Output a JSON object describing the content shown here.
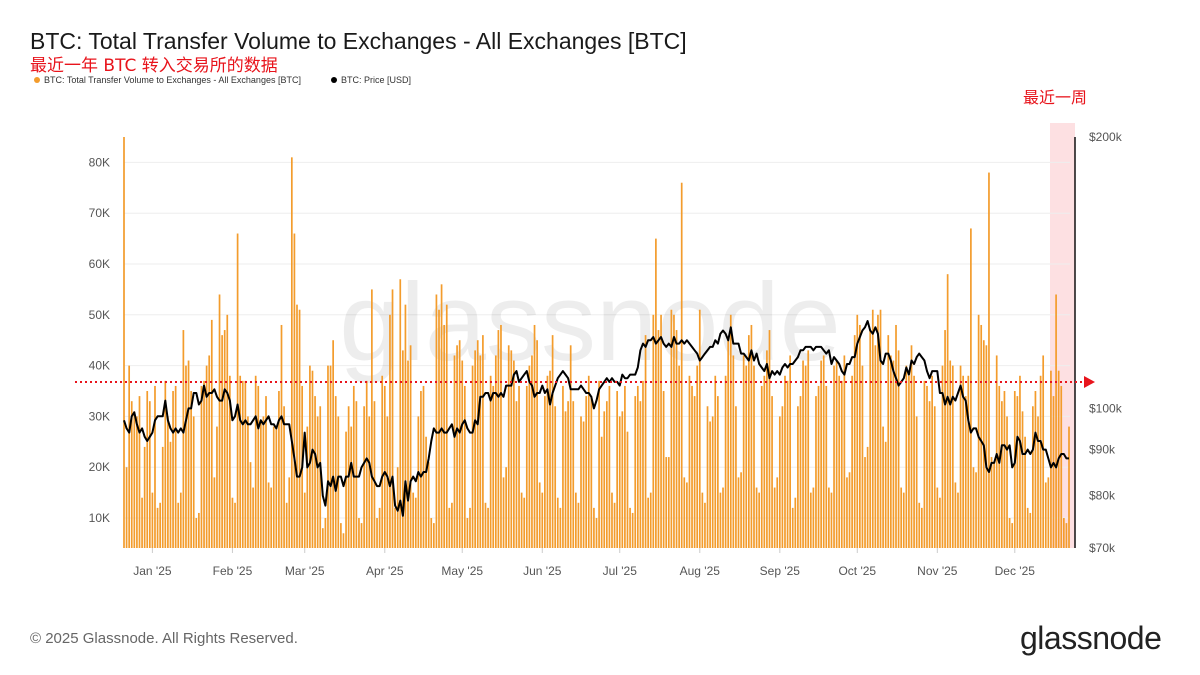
{
  "header": {
    "title": "BTC: Total Transfer Volume to Exchanges - All Exchanges [BTC]",
    "subtitle": "最近一年 BTC 转入交易所的数据",
    "annotation_last_week": "最近一周"
  },
  "legend": [
    {
      "label": "BTC: Total Transfer Volume to Exchanges - All Exchanges [BTC]",
      "color": "#f39c2c"
    },
    {
      "label": "BTC: Price [USD]",
      "color": "#000000"
    }
  ],
  "footer": {
    "copyright": "© 2025 Glassnode. All Rights Reserved.",
    "logo": "glassnode"
  },
  "watermark": "glassnode",
  "chart_data": {
    "type": "bar",
    "title": "BTC: Total Transfer Volume to Exchanges - All Exchanges [BTC]",
    "start_date": "2024-12-21",
    "end_date": "2025-12-22",
    "x_tick_labels": [
      {
        "label": "Jan '25",
        "day_index": 11
      },
      {
        "label": "Feb '25",
        "day_index": 42
      },
      {
        "label": "Mar '25",
        "day_index": 70
      },
      {
        "label": "Apr '25",
        "day_index": 101
      },
      {
        "label": "May '25",
        "day_index": 131
      },
      {
        "label": "Jun '25",
        "day_index": 162
      },
      {
        "label": "Jul '25",
        "day_index": 192
      },
      {
        "label": "Aug '25",
        "day_index": 223
      },
      {
        "label": "Sep '25",
        "day_index": 254
      },
      {
        "label": "Oct '25",
        "day_index": 284
      },
      {
        "label": "Nov '25",
        "day_index": 315
      },
      {
        "label": "Dec '25",
        "day_index": 345
      }
    ],
    "y_left": {
      "unit": "BTC (thousands)",
      "ylim": [
        4.1,
        85
      ],
      "ticks": [
        {
          "v": 10,
          "label": "10K"
        },
        {
          "v": 20,
          "label": "20K"
        },
        {
          "v": 30,
          "label": "30K"
        },
        {
          "v": 40,
          "label": "40K"
        },
        {
          "v": 50,
          "label": "50K"
        },
        {
          "v": 60,
          "label": "60K"
        },
        {
          "v": 70,
          "label": "70K"
        },
        {
          "v": 80,
          "label": "80K"
        }
      ],
      "grid": true
    },
    "y_right": {
      "unit": "USD (thousands)",
      "scale": "log",
      "ylim": [
        70,
        200
      ],
      "ticks": [
        {
          "v": 70,
          "label": "$70k"
        },
        {
          "v": 80,
          "label": "$80k"
        },
        {
          "v": 90,
          "label": "$90k"
        },
        {
          "v": 100,
          "label": "$100k"
        },
        {
          "v": 200,
          "label": "$200k"
        }
      ]
    },
    "reference_line": {
      "value": 36.8,
      "style": "dotted",
      "color": "#e8141c"
    },
    "highlight": {
      "from_day_index": 359,
      "to_day_index": 366,
      "label": "最近一周",
      "color": "#fde0e2"
    },
    "series": [
      {
        "name": "BTC: Total Transfer Volume to Exchanges - All Exchanges [BTC]",
        "type": "bar",
        "color": "#f39c2c",
        "values": [
          85,
          20,
          40,
          33,
          31,
          30,
          34,
          14,
          24,
          35,
          33,
          15,
          36,
          12,
          13,
          24,
          37,
          30,
          25,
          35,
          36,
          13,
          15,
          47,
          40,
          41,
          35,
          30,
          10,
          11,
          36,
          37,
          40,
          42,
          49,
          18,
          28,
          54,
          46,
          47,
          50,
          38,
          14,
          13,
          66,
          38,
          37,
          37,
          30,
          21,
          16,
          38,
          36,
          29,
          30,
          34,
          17,
          16,
          28,
          28,
          35,
          48,
          32,
          13,
          18,
          81,
          66,
          52,
          51,
          36,
          15,
          28,
          40,
          39,
          34,
          30,
          32,
          8,
          10,
          40,
          40,
          45,
          34,
          30,
          9,
          7,
          27,
          32,
          28,
          36,
          33,
          10,
          9,
          32,
          37,
          30,
          55,
          33,
          10,
          12,
          38,
          36,
          30,
          50,
          55,
          12,
          20,
          57,
          43,
          52,
          41,
          44,
          15,
          14,
          30,
          35,
          36,
          26,
          21,
          10,
          9,
          54,
          51,
          56,
          48,
          52,
          12,
          13,
          42,
          44,
          45,
          41,
          36,
          10,
          12,
          40,
          43,
          45,
          42,
          46,
          13,
          12,
          38,
          36,
          42,
          47,
          48,
          18,
          20,
          44,
          43,
          41,
          33,
          36,
          15,
          14,
          36,
          40,
          42,
          48,
          45,
          17,
          15,
          34,
          38,
          39,
          46,
          32,
          14,
          12,
          36,
          31,
          33,
          44,
          33,
          15,
          13,
          30,
          29,
          34,
          38,
          34,
          12,
          10,
          37,
          26,
          31,
          33,
          36,
          15,
          13,
          35,
          30,
          31,
          36,
          27,
          12,
          11,
          34,
          36,
          33,
          37,
          46,
          14,
          15,
          50,
          65,
          47,
          50,
          35,
          22,
          22,
          51,
          50,
          47,
          40,
          76,
          18,
          17,
          38,
          36,
          34,
          40,
          51,
          15,
          13,
          32,
          29,
          30,
          38,
          34,
          15,
          16,
          38,
          45,
          50,
          42,
          32,
          18,
          19,
          42,
          40,
          46,
          48,
          40,
          16,
          15,
          36,
          38,
          43,
          47,
          34,
          16,
          18,
          30,
          32,
          38,
          37,
          42,
          12,
          14,
          32,
          34,
          41,
          40,
          43,
          15,
          16,
          34,
          36,
          41,
          42,
          36,
          16,
          15,
          40,
          41,
          38,
          37,
          42,
          18,
          19,
          38,
          46,
          50,
          48,
          40,
          22,
          24,
          47,
          51,
          44,
          50,
          51,
          28,
          25,
          46,
          42,
          41,
          48,
          43,
          16,
          15,
          40,
          38,
          44,
          38,
          30,
          13,
          12,
          37,
          36,
          33,
          38,
          32,
          16,
          14,
          40,
          47,
          58,
          41,
          40,
          17,
          15,
          40,
          38,
          34,
          38,
          67,
          20,
          19,
          50,
          48,
          45,
          44,
          78,
          22,
          21,
          42,
          36,
          33,
          35,
          30,
          10,
          9,
          35,
          34,
          38,
          31,
          26,
          12,
          11,
          32,
          35,
          30,
          38,
          42,
          17,
          18,
          39,
          34,
          54,
          39,
          36,
          10,
          9,
          28
        ]
      },
      {
        "name": "BTC: Price [USD]",
        "type": "line",
        "color": "#000000",
        "values": [
          97,
          95,
          94,
          98,
          99,
          96,
          94,
          95,
          93,
          92,
          93,
          94,
          97,
          98,
          98,
          98,
          102,
          97,
          95,
          94,
          95,
          94,
          95,
          94,
          97,
          100,
          100,
          104,
          104,
          101,
          102,
          106,
          103,
          104,
          104,
          105,
          103,
          102,
          102,
          105,
          104,
          102,
          97,
          98,
          101,
          97,
          96,
          97,
          96,
          96,
          97,
          98,
          95,
          97,
          96,
          97,
          98,
          96,
          96,
          95,
          97,
          98,
          96,
          96,
          96,
          92,
          88,
          84,
          84,
          86,
          94,
          86,
          87,
          90,
          89,
          86,
          87,
          80,
          78,
          83,
          82,
          84,
          81,
          84,
          84,
          82,
          84,
          84,
          87,
          84,
          84,
          84,
          86,
          87,
          88,
          87,
          84,
          83,
          82,
          82,
          84,
          85,
          84,
          82,
          84,
          78,
          77,
          79,
          76,
          83,
          79,
          83,
          84,
          83,
          85,
          84,
          85,
          85,
          88,
          92,
          95,
          94,
          94,
          95,
          94,
          94,
          95,
          96,
          93,
          95,
          94,
          96,
          97,
          95,
          94,
          94,
          97,
          96,
          103,
          103,
          104,
          104,
          102,
          104,
          104,
          103,
          104,
          103,
          106,
          106,
          106,
          109,
          110,
          107,
          108,
          109,
          110,
          107,
          106,
          103,
          104,
          104,
          106,
          104,
          105,
          101,
          104,
          106,
          108,
          109,
          110,
          109,
          108,
          105,
          105,
          105,
          105,
          106,
          105,
          104,
          104,
          103,
          100,
          102,
          105,
          106,
          107,
          108,
          107,
          108,
          107,
          107,
          106,
          109,
          108,
          108,
          109,
          109,
          109,
          111,
          116,
          118,
          117,
          119,
          119,
          120,
          118,
          119,
          120,
          118,
          117,
          118,
          117,
          120,
          118,
          118,
          119,
          118,
          119,
          118,
          117,
          116,
          115,
          113,
          114,
          115,
          116,
          117,
          117,
          119,
          118,
          121,
          122,
          121,
          119,
          123,
          118,
          118,
          118,
          115,
          115,
          114,
          113,
          116,
          113,
          115,
          112,
          111,
          110,
          112,
          108,
          110,
          109,
          110,
          109,
          111,
          112,
          111,
          112,
          112,
          113,
          114,
          116,
          116,
          117,
          117,
          117,
          116,
          117,
          117,
          117,
          116,
          115,
          116,
          112,
          114,
          113,
          112,
          110,
          109,
          112,
          112,
          114,
          114,
          118,
          120,
          122,
          123,
          125,
          122,
          121,
          123,
          121,
          113,
          112,
          115,
          115,
          113,
          110,
          108,
          106,
          107,
          108,
          111,
          109,
          113,
          112,
          114,
          115,
          114,
          113,
          110,
          108,
          110,
          110,
          110,
          104,
          104,
          101,
          103,
          101,
          103,
          102,
          104,
          106,
          103,
          102,
          97,
          94,
          95,
          95,
          93,
          92,
          91,
          86,
          85,
          87,
          87,
          89,
          87,
          91,
          91,
          90,
          91,
          86,
          87,
          93,
          92,
          89,
          89,
          90,
          89,
          90,
          94,
          92,
          92,
          90,
          90,
          88,
          86,
          87,
          86,
          88,
          89,
          89,
          88,
          88
        ]
      }
    ]
  }
}
